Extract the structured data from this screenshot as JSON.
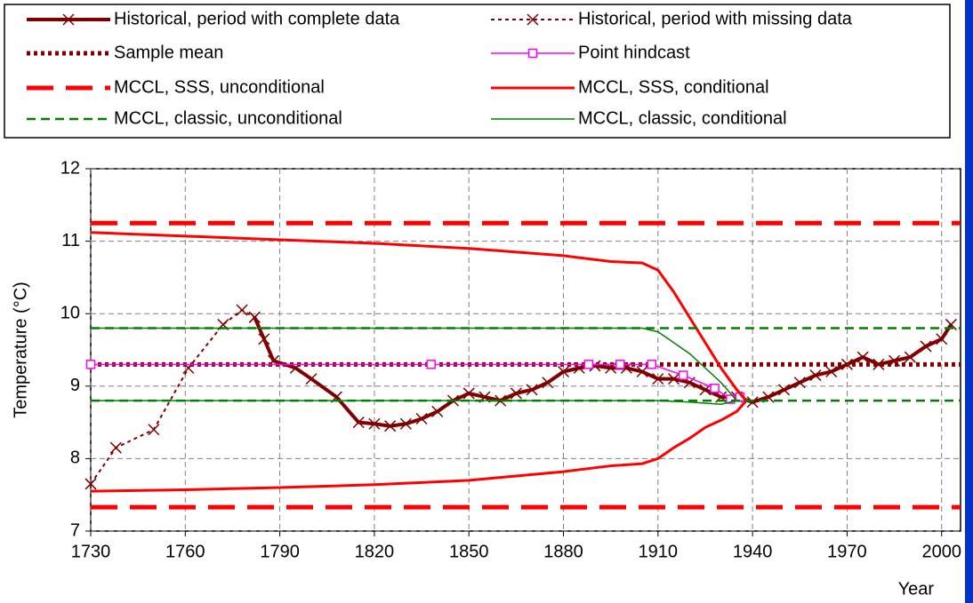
{
  "chart_data": {
    "type": "line",
    "x_label": "Year",
    "y_label": "Temperature (°C)",
    "xlim": [
      1730,
      2006
    ],
    "xticks": [
      1730,
      1760,
      1790,
      1820,
      1850,
      1880,
      1910,
      1940,
      1970,
      2000
    ],
    "ylim": [
      7,
      12
    ],
    "yticks": [
      7,
      8,
      9,
      10,
      11,
      12
    ],
    "grid": true,
    "series": [
      {
        "name": "Historical, period with complete data",
        "color": "#800000",
        "style": "solid",
        "width": 4,
        "marker": "x",
        "x": [
          1782,
          1785,
          1788,
          1795,
          1800,
          1808,
          1815,
          1820,
          1825,
          1830,
          1835,
          1840,
          1845,
          1850,
          1855,
          1860,
          1865,
          1870,
          1875,
          1880,
          1885,
          1890,
          1895,
          1900,
          1905,
          1910,
          1915,
          1920,
          1925,
          1930,
          1935,
          1940,
          1945,
          1950,
          1955,
          1960,
          1965,
          1970,
          1975,
          1980,
          1985,
          1990,
          1995,
          2000,
          2003
        ],
        "values": [
          9.95,
          9.65,
          9.35,
          9.25,
          9.1,
          8.85,
          8.5,
          8.48,
          8.45,
          8.48,
          8.55,
          8.65,
          8.8,
          8.9,
          8.85,
          8.8,
          8.9,
          8.95,
          9.05,
          9.2,
          9.25,
          9.28,
          9.25,
          9.25,
          9.2,
          9.1,
          9.1,
          9.05,
          8.95,
          8.85,
          8.85,
          8.78,
          8.85,
          8.95,
          9.05,
          9.15,
          9.2,
          9.3,
          9.4,
          9.3,
          9.35,
          9.4,
          9.55,
          9.65,
          9.85
        ]
      },
      {
        "name": "Historical, period with missing data",
        "color": "#800000",
        "style": "dotted",
        "width": 2,
        "marker": "x",
        "x": [
          1730,
          1738,
          1750,
          1761,
          1772,
          1778,
          1782
        ],
        "values": [
          7.65,
          8.15,
          8.4,
          9.25,
          9.85,
          10.05,
          9.95
        ]
      },
      {
        "name": "Sample mean",
        "color": "#800000",
        "style": "dotted",
        "width": 5,
        "marker": null,
        "x": [
          1730,
          2006
        ],
        "values": [
          9.3,
          9.3
        ]
      },
      {
        "name": "Point hindcast",
        "color": "#ff00ff",
        "style": "solid",
        "width": 1.5,
        "marker": "square",
        "x": [
          1730,
          1838,
          1888,
          1898,
          1908,
          1918,
          1928,
          1933,
          1936
        ],
        "values": [
          9.3,
          9.3,
          9.3,
          9.3,
          9.3,
          9.15,
          8.97,
          8.82,
          8.85
        ]
      },
      {
        "name": "MCCL, SSS, unconditional",
        "color": "#ff0000",
        "style": "longdash",
        "width": 5,
        "marker": null,
        "x": [
          1730,
          2006
        ],
        "upper": [
          11.25,
          11.25
        ],
        "lower": [
          7.33,
          7.33
        ]
      },
      {
        "name": "MCCL, SSS, conditional",
        "color": "#ff0000",
        "style": "solid",
        "width": 3,
        "marker": null,
        "x": [
          1730,
          1760,
          1790,
          1820,
          1850,
          1880,
          1895,
          1905,
          1910,
          1915,
          1920,
          1925,
          1930,
          1935,
          1938
        ],
        "upper": [
          11.12,
          11.07,
          11.02,
          10.97,
          10.9,
          10.8,
          10.72,
          10.7,
          10.6,
          10.3,
          9.95,
          9.6,
          9.25,
          8.95,
          8.8
        ],
        "lower": [
          7.55,
          7.57,
          7.6,
          7.64,
          7.7,
          7.82,
          7.9,
          7.93,
          8.0,
          8.15,
          8.28,
          8.43,
          8.53,
          8.65,
          8.8
        ]
      },
      {
        "name": "MCCL, classic, unconditional",
        "color": "#008000",
        "style": "dash",
        "width": 2.5,
        "marker": null,
        "x": [
          1730,
          2006
        ],
        "upper": [
          9.8,
          9.8
        ],
        "lower": [
          8.8,
          8.8
        ]
      },
      {
        "name": "MCCL, classic, conditional",
        "color": "#008000",
        "style": "solid",
        "width": 1.5,
        "marker": null,
        "x": [
          1730,
          1905,
          1910,
          1920,
          1930,
          1935
        ],
        "upper": [
          9.8,
          9.8,
          9.75,
          9.45,
          9.05,
          8.8
        ],
        "lower": [
          8.8,
          8.8,
          8.8,
          8.78,
          8.75,
          8.8
        ]
      }
    ]
  }
}
